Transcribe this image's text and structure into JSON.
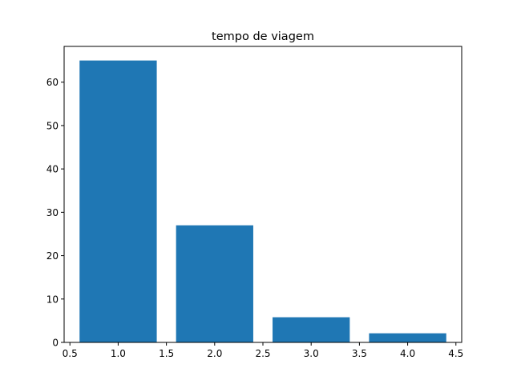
{
  "chart_data": {
    "type": "bar",
    "title": "tempo de viagem",
    "xlabel": "",
    "ylabel": "",
    "x": [
      1,
      2,
      3,
      4
    ],
    "values": [
      65,
      27,
      5.8,
      2.1
    ],
    "bar_width": 0.8,
    "xlim": [
      0.44,
      4.56
    ],
    "ylim": [
      0,
      68.25
    ],
    "xticks": [
      0.5,
      1.0,
      1.5,
      2.0,
      2.5,
      3.0,
      3.5,
      4.0,
      4.5
    ],
    "xtick_labels": [
      "0.5",
      "1.0",
      "1.5",
      "2.0",
      "2.5",
      "3.0",
      "3.5",
      "4.0",
      "4.5"
    ],
    "yticks": [
      0,
      10,
      20,
      30,
      40,
      50,
      60
    ],
    "ytick_labels": [
      "0",
      "10",
      "20",
      "30",
      "40",
      "50",
      "60"
    ],
    "bar_color": "#1f77b4",
    "grid": false,
    "legend": "none"
  }
}
